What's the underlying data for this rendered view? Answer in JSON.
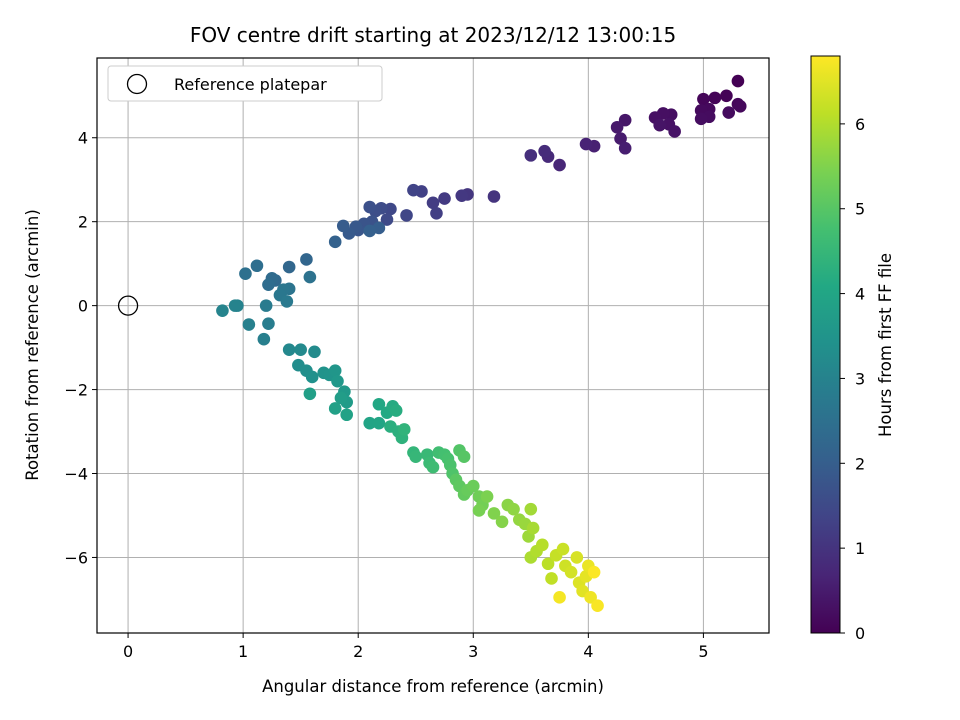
{
  "chart_data": {
    "type": "scatter",
    "title": "FOV centre drift starting at 2023/12/12 13:00:15",
    "xlabel": "Angular distance from reference (arcmin)",
    "ylabel": "Rotation from reference (arcmin)",
    "colorbar_label": "Hours from first FF file",
    "colormap": "viridis",
    "xlim": [
      -0.27,
      5.57
    ],
    "ylim": [
      -7.8,
      5.9
    ],
    "clim": [
      0,
      6.8
    ],
    "xticks": [
      "0",
      "1",
      "2",
      "3",
      "4",
      "5"
    ],
    "yticks": [
      "−6",
      "−4",
      "−2",
      "0",
      "2",
      "4"
    ],
    "cticks": [
      "0",
      "1",
      "2",
      "3",
      "4",
      "5",
      "6"
    ],
    "grid": true,
    "legend": {
      "position": "top-left",
      "label": "Reference platepar"
    },
    "reference_point": {
      "x": 0,
      "y": 0
    },
    "points": [
      [
        5.3,
        5.35,
        0.0
      ],
      [
        5.2,
        5.0,
        0.03
      ],
      [
        5.1,
        4.95,
        0.06
      ],
      [
        5.0,
        4.92,
        0.09
      ],
      [
        5.3,
        4.8,
        0.11
      ],
      [
        5.32,
        4.75,
        0.13
      ],
      [
        5.05,
        4.68,
        0.15
      ],
      [
        4.98,
        4.65,
        0.17
      ],
      [
        5.22,
        4.6,
        0.19
      ],
      [
        5.05,
        4.5,
        0.21
      ],
      [
        4.98,
        4.45,
        0.23
      ],
      [
        4.72,
        4.55,
        0.25
      ],
      [
        4.65,
        4.58,
        0.27
      ],
      [
        4.58,
        4.48,
        0.29
      ],
      [
        4.7,
        4.32,
        0.31
      ],
      [
        4.75,
        4.15,
        0.33
      ],
      [
        4.62,
        4.3,
        0.35
      ],
      [
        4.32,
        4.42,
        0.4
      ],
      [
        4.25,
        4.25,
        0.45
      ],
      [
        4.28,
        3.98,
        0.5
      ],
      [
        4.32,
        3.75,
        0.55
      ],
      [
        4.05,
        3.8,
        0.6
      ],
      [
        3.98,
        3.85,
        0.65
      ],
      [
        3.75,
        3.35,
        0.72
      ],
      [
        3.65,
        3.55,
        0.78
      ],
      [
        3.62,
        3.68,
        0.84
      ],
      [
        3.5,
        3.58,
        0.9
      ],
      [
        3.18,
        2.6,
        1.0
      ],
      [
        2.95,
        2.65,
        1.05
      ],
      [
        2.9,
        2.62,
        1.1
      ],
      [
        2.75,
        2.55,
        1.15
      ],
      [
        2.65,
        2.45,
        1.2
      ],
      [
        2.68,
        2.2,
        1.25
      ],
      [
        2.55,
        2.72,
        1.3
      ],
      [
        2.48,
        2.75,
        1.35
      ],
      [
        2.42,
        2.15,
        1.4
      ],
      [
        2.28,
        2.3,
        1.45
      ],
      [
        2.25,
        2.05,
        1.5
      ],
      [
        2.2,
        2.32,
        1.55
      ],
      [
        2.15,
        2.25,
        1.6
      ],
      [
        2.1,
        2.35,
        1.65
      ],
      [
        2.12,
        2.0,
        1.7
      ],
      [
        2.05,
        1.95,
        1.75
      ],
      [
        2.0,
        1.8,
        1.8
      ],
      [
        1.98,
        1.88,
        1.85
      ],
      [
        1.92,
        1.72,
        1.9
      ],
      [
        1.87,
        1.9,
        1.95
      ],
      [
        2.18,
        1.85,
        2.0
      ],
      [
        2.1,
        1.78,
        2.05
      ],
      [
        1.8,
        1.52,
        2.1
      ],
      [
        1.55,
        1.1,
        2.2
      ],
      [
        1.4,
        0.92,
        2.25
      ],
      [
        1.28,
        0.6,
        2.3
      ],
      [
        1.25,
        0.65,
        2.35
      ],
      [
        1.22,
        0.5,
        2.4
      ],
      [
        1.12,
        0.95,
        2.45
      ],
      [
        1.02,
        0.76,
        2.5
      ],
      [
        1.58,
        0.68,
        2.55
      ],
      [
        1.4,
        0.4,
        2.6
      ],
      [
        1.35,
        0.38,
        2.65
      ],
      [
        1.32,
        0.25,
        2.7
      ],
      [
        1.38,
        0.1,
        2.75
      ],
      [
        1.2,
        0.0,
        2.8
      ],
      [
        1.22,
        -0.43,
        2.85
      ],
      [
        1.18,
        -0.8,
        2.9
      ],
      [
        1.05,
        -0.45,
        2.95
      ],
      [
        0.95,
        0.0,
        3.0
      ],
      [
        0.93,
        0.0,
        3.02
      ],
      [
        0.82,
        -0.12,
        3.05
      ],
      [
        1.4,
        -1.05,
        3.15
      ],
      [
        1.5,
        -1.05,
        3.2
      ],
      [
        1.62,
        -1.1,
        3.25
      ],
      [
        1.48,
        -1.42,
        3.3
      ],
      [
        1.55,
        -1.55,
        3.35
      ],
      [
        1.6,
        -1.7,
        3.4
      ],
      [
        1.7,
        -1.6,
        3.45
      ],
      [
        1.75,
        -1.65,
        3.5
      ],
      [
        1.8,
        -1.55,
        3.55
      ],
      [
        1.82,
        -1.8,
        3.6
      ],
      [
        1.88,
        -2.05,
        3.65
      ],
      [
        1.9,
        -2.3,
        3.7
      ],
      [
        1.85,
        -2.2,
        3.75
      ],
      [
        1.58,
        -2.1,
        3.8
      ],
      [
        1.8,
        -2.45,
        3.85
      ],
      [
        1.9,
        -2.6,
        3.9
      ],
      [
        2.1,
        -2.8,
        3.95
      ],
      [
        2.18,
        -2.8,
        4.0
      ],
      [
        2.18,
        -2.35,
        4.05
      ],
      [
        2.25,
        -2.55,
        4.1
      ],
      [
        2.3,
        -2.4,
        4.15
      ],
      [
        2.33,
        -2.5,
        4.2
      ],
      [
        2.28,
        -2.88,
        4.25
      ],
      [
        2.35,
        -3.0,
        4.3
      ],
      [
        2.38,
        -3.15,
        4.35
      ],
      [
        2.4,
        -2.95,
        4.4
      ],
      [
        2.48,
        -3.5,
        4.45
      ],
      [
        2.5,
        -3.6,
        4.5
      ],
      [
        2.6,
        -3.55,
        4.55
      ],
      [
        2.62,
        -3.75,
        4.6
      ],
      [
        2.65,
        -3.85,
        4.65
      ],
      [
        2.7,
        -3.5,
        4.7
      ],
      [
        2.75,
        -3.55,
        4.75
      ],
      [
        2.78,
        -3.65,
        4.8
      ],
      [
        2.8,
        -3.8,
        4.85
      ],
      [
        2.82,
        -4.0,
        4.9
      ],
      [
        2.88,
        -3.45,
        4.95
      ],
      [
        2.92,
        -3.6,
        5.0
      ],
      [
        2.85,
        -4.15,
        5.05
      ],
      [
        2.88,
        -4.3,
        5.1
      ],
      [
        2.92,
        -4.5,
        5.15
      ],
      [
        2.95,
        -4.4,
        5.2
      ],
      [
        3.0,
        -4.3,
        5.25
      ],
      [
        3.05,
        -4.55,
        5.3
      ],
      [
        3.08,
        -4.75,
        5.35
      ],
      [
        3.05,
        -4.88,
        5.4
      ],
      [
        3.12,
        -4.55,
        5.45
      ],
      [
        3.18,
        -4.95,
        5.5
      ],
      [
        3.25,
        -5.15,
        5.55
      ],
      [
        3.3,
        -4.75,
        5.6
      ],
      [
        3.35,
        -4.85,
        5.65
      ],
      [
        3.4,
        -5.1,
        5.7
      ],
      [
        3.45,
        -5.2,
        5.75
      ],
      [
        3.48,
        -5.5,
        5.8
      ],
      [
        3.5,
        -4.85,
        5.85
      ],
      [
        3.52,
        -5.3,
        5.9
      ],
      [
        3.5,
        -6.0,
        5.95
      ],
      [
        3.55,
        -5.85,
        6.0
      ],
      [
        3.6,
        -5.7,
        6.05
      ],
      [
        3.65,
        -6.15,
        6.1
      ],
      [
        3.68,
        -6.5,
        6.15
      ],
      [
        3.72,
        -5.95,
        6.2
      ],
      [
        3.78,
        -5.8,
        6.25
      ],
      [
        3.8,
        -6.2,
        6.3
      ],
      [
        3.85,
        -6.35,
        6.35
      ],
      [
        3.9,
        -6.0,
        6.4
      ],
      [
        3.92,
        -6.6,
        6.45
      ],
      [
        3.95,
        -6.8,
        6.5
      ],
      [
        3.98,
        -6.45,
        6.55
      ],
      [
        4.0,
        -6.2,
        6.6
      ],
      [
        4.02,
        -6.95,
        6.65
      ],
      [
        3.75,
        -6.95,
        6.7
      ],
      [
        4.08,
        -7.15,
        6.75
      ],
      [
        4.05,
        -6.35,
        6.78
      ]
    ]
  }
}
